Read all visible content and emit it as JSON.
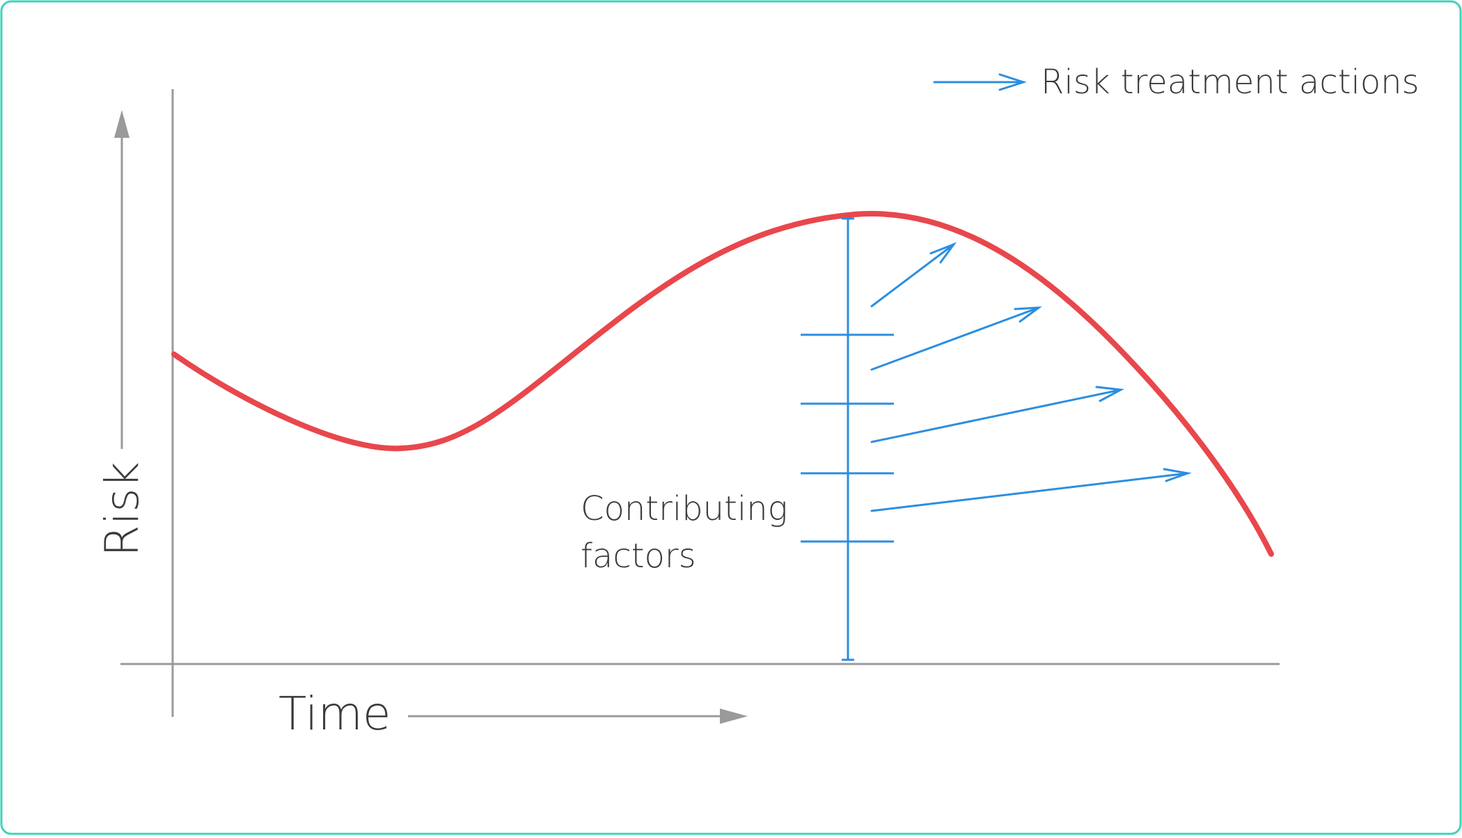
{
  "diagram": {
    "y_axis_label": "Risk",
    "x_axis_label": "Time",
    "legend_label": "Risk treatment actions",
    "annotation_line1": "Contributing",
    "annotation_line2": "factors"
  },
  "colors": {
    "curve": "#e8474c",
    "actions": "#2b8ee0",
    "axes": "#9a9a9a",
    "frame_border": "#3fd4b8",
    "text": "#3a3a3a"
  },
  "icons": {
    "y_axis_arrow": "up-arrow-icon",
    "x_axis_arrow": "right-arrow-icon",
    "legend_arrow": "right-arrow-icon"
  }
}
